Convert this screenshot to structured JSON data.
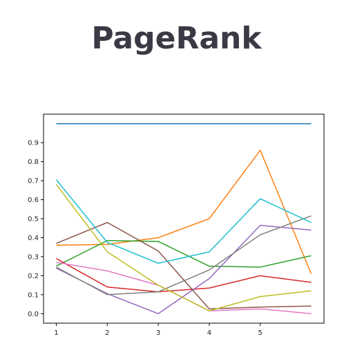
{
  "slide": {
    "title": "PageRank"
  },
  "chart_data": {
    "type": "line",
    "title": "",
    "xlabel": "",
    "ylabel": "",
    "x": [
      1,
      2,
      3,
      4,
      5,
      6
    ],
    "xticks": [
      1,
      2,
      3,
      4,
      5
    ],
    "yticks": [
      0.0,
      0.1,
      0.2,
      0.3,
      0.4,
      0.5,
      0.6,
      0.7,
      0.8,
      0.9
    ],
    "xlim": [
      0.75,
      6.25
    ],
    "ylim": [
      -0.05,
      1.05
    ],
    "grid": false,
    "legend": "none",
    "series": [
      {
        "color": "#1f77b4",
        "values": [
          1.0,
          1.0,
          1.0,
          1.0,
          1.0,
          1.0
        ]
      },
      {
        "color": "#ff7f0e",
        "values": [
          0.36,
          0.365,
          0.4,
          0.5,
          0.86,
          0.21
        ]
      },
      {
        "color": "#2ca02c",
        "values": [
          0.25,
          0.385,
          0.38,
          0.25,
          0.245,
          0.305
        ]
      },
      {
        "color": "#d62728",
        "values": [
          0.29,
          0.14,
          0.115,
          0.135,
          0.2,
          0.165
        ]
      },
      {
        "color": "#9467bd",
        "values": [
          0.24,
          0.105,
          0.0,
          0.185,
          0.465,
          0.44
        ]
      },
      {
        "color": "#8c564b",
        "values": [
          0.37,
          0.48,
          0.33,
          0.025,
          0.035,
          0.04
        ]
      },
      {
        "color": "#e377c2",
        "values": [
          0.27,
          0.225,
          0.15,
          0.015,
          0.025,
          0.0
        ]
      },
      {
        "color": "#7f7f7f",
        "values": [
          0.245,
          0.1,
          0.115,
          0.23,
          0.415,
          0.515
        ]
      },
      {
        "color": "#bcbd22",
        "values": [
          0.68,
          0.325,
          0.15,
          0.015,
          0.09,
          0.12
        ]
      },
      {
        "color": "#17becf",
        "values": [
          0.705,
          0.375,
          0.265,
          0.325,
          0.605,
          0.48
        ]
      }
    ]
  }
}
